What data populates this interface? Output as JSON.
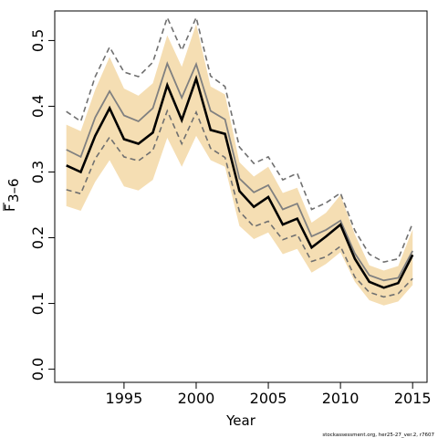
{
  "chart_data": {
    "type": "line",
    "xlabel": "Year",
    "ylabel": "F",
    "ylabel_subscript": "3–6",
    "footer_note": "stockassessment.org, her25-27_ver.2, r7607",
    "xlim": [
      1990.2,
      2016.0
    ],
    "ylim": [
      -0.02,
      0.545
    ],
    "xticks": [
      1995,
      2000,
      2005,
      2010,
      2015
    ],
    "yticks": [
      0.0,
      0.1,
      0.2,
      0.3,
      0.4,
      0.5
    ],
    "ytick_labels": [
      "0.0",
      "0.1",
      "0.2",
      "0.3",
      "0.4",
      "0.5"
    ],
    "grid": false,
    "colors": {
      "band": "#f5deb3",
      "estimate": "#000000",
      "alternative": "#808080",
      "alternative_ci": "#707070"
    },
    "x": [
      1991,
      1992,
      1993,
      1994,
      1995,
      1996,
      1997,
      1998,
      1999,
      2000,
      2001,
      2002,
      2003,
      2004,
      2005,
      2006,
      2007,
      2008,
      2009,
      2010,
      2011,
      2012,
      2013,
      2014,
      2015
    ],
    "series": [
      {
        "role": "ci-lower",
        "values": [
          0.248,
          0.241,
          0.285,
          0.318,
          0.278,
          0.272,
          0.288,
          0.352,
          0.308,
          0.355,
          0.318,
          0.308,
          0.218,
          0.198,
          0.208,
          0.175,
          0.183,
          0.147,
          0.16,
          0.178,
          0.133,
          0.105,
          0.097,
          0.103,
          0.128
        ]
      },
      {
        "role": "ci-upper",
        "values": [
          0.372,
          0.362,
          0.425,
          0.475,
          0.427,
          0.416,
          0.435,
          0.508,
          0.46,
          0.525,
          0.43,
          0.418,
          0.315,
          0.293,
          0.308,
          0.268,
          0.276,
          0.223,
          0.238,
          0.265,
          0.205,
          0.158,
          0.15,
          0.157,
          0.213
        ]
      },
      {
        "role": "estimate",
        "values": [
          0.31,
          0.3,
          0.355,
          0.397,
          0.35,
          0.343,
          0.36,
          0.432,
          0.379,
          0.442,
          0.364,
          0.358,
          0.271,
          0.247,
          0.262,
          0.22,
          0.229,
          0.185,
          0.202,
          0.22,
          0.168,
          0.133,
          0.124,
          0.131,
          0.174
        ]
      },
      {
        "role": "alternative",
        "values": [
          0.334,
          0.323,
          0.383,
          0.423,
          0.386,
          0.377,
          0.397,
          0.465,
          0.413,
          0.464,
          0.393,
          0.38,
          0.29,
          0.269,
          0.28,
          0.243,
          0.252,
          0.202,
          0.212,
          0.226,
          0.176,
          0.143,
          0.135,
          0.139,
          0.18
        ]
      },
      {
        "role": "alternative-ci-lower",
        "values": [
          0.273,
          0.267,
          0.32,
          0.353,
          0.323,
          0.317,
          0.333,
          0.393,
          0.343,
          0.391,
          0.336,
          0.322,
          0.24,
          0.217,
          0.225,
          0.197,
          0.205,
          0.164,
          0.171,
          0.187,
          0.14,
          0.117,
          0.11,
          0.115,
          0.138
        ]
      },
      {
        "role": "alternative-ci-upper",
        "values": [
          0.392,
          0.377,
          0.445,
          0.49,
          0.452,
          0.445,
          0.467,
          0.535,
          0.485,
          0.535,
          0.446,
          0.43,
          0.338,
          0.313,
          0.323,
          0.288,
          0.298,
          0.243,
          0.253,
          0.268,
          0.211,
          0.175,
          0.163,
          0.168,
          0.222
        ]
      }
    ]
  }
}
